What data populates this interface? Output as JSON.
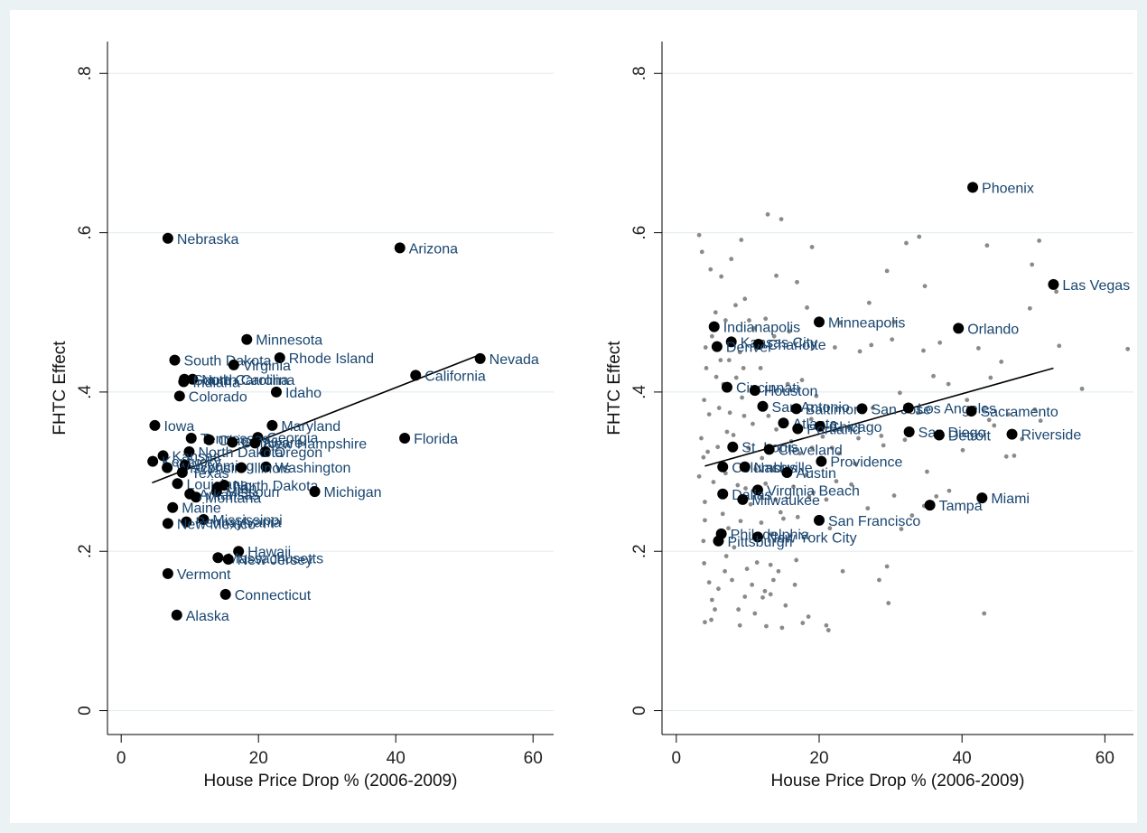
{
  "chart_data": [
    {
      "type": "scatter",
      "xlabel": "House Price Drop % (2006-2009)",
      "ylabel": "FHTC Effect",
      "xticks": [
        "0",
        "20",
        "40",
        "60"
      ],
      "yticks": [
        "0",
        ".2",
        ".4",
        ".6",
        ".8"
      ],
      "xlim": [
        -2,
        63
      ],
      "ylim": [
        -0.03,
        0.84
      ],
      "grid": "horizontal",
      "points": [
        {
          "label": "Nebraska",
          "x": 6.8,
          "y": 0.593
        },
        {
          "label": "Arizona",
          "x": 40.6,
          "y": 0.581
        },
        {
          "label": "Minnesota",
          "x": 18.3,
          "y": 0.466
        },
        {
          "label": "Rhode Island",
          "x": 23.1,
          "y": 0.443
        },
        {
          "label": "Nevada",
          "x": 52.3,
          "y": 0.442
        },
        {
          "label": "South Dakota",
          "x": 7.8,
          "y": 0.44
        },
        {
          "label": "Virginia",
          "x": 16.4,
          "y": 0.434
        },
        {
          "label": "California",
          "x": 42.9,
          "y": 0.421
        },
        {
          "label": "North Carolina",
          "x": 10.4,
          "y": 0.416
        },
        {
          "label": "South Carolina",
          "x": 9.2,
          "y": 0.416
        },
        {
          "label": "Indiana",
          "x": 9.1,
          "y": 0.413
        },
        {
          "label": "Idaho",
          "x": 22.6,
          "y": 0.4
        },
        {
          "label": "Colorado",
          "x": 8.5,
          "y": 0.395
        },
        {
          "label": "Iowa",
          "x": 4.9,
          "y": 0.358
        },
        {
          "label": "Maryland",
          "x": 22.0,
          "y": 0.358
        },
        {
          "label": "Georgia",
          "x": 19.9,
          "y": 0.343
        },
        {
          "label": "Florida",
          "x": 41.3,
          "y": 0.342
        },
        {
          "label": "Tennessee",
          "x": 10.2,
          "y": 0.342
        },
        {
          "label": "Ohio",
          "x": 12.8,
          "y": 0.34
        },
        {
          "label": "Delaware",
          "x": 16.2,
          "y": 0.337
        },
        {
          "label": "New Hampshire",
          "x": 19.5,
          "y": 0.336
        },
        {
          "label": "Oregon",
          "x": 21.0,
          "y": 0.325
        },
        {
          "label": "North Dakota",
          "x": 9.9,
          "y": 0.325
        },
        {
          "label": "Kansas",
          "x": 6.1,
          "y": 0.32
        },
        {
          "label": "Kentucky",
          "x": 4.6,
          "y": 0.313
        },
        {
          "label": "Wyoming",
          "x": 9.3,
          "y": 0.308
        },
        {
          "label": "Washington",
          "x": 21.1,
          "y": 0.306
        },
        {
          "label": "Wisconsin",
          "x": 6.7,
          "y": 0.305
        },
        {
          "label": "Illinois",
          "x": 17.5,
          "y": 0.305
        },
        {
          "label": "Texas",
          "x": 8.9,
          "y": 0.299
        },
        {
          "label": "Louisiana",
          "x": 8.2,
          "y": 0.285
        },
        {
          "label": "Utah",
          "x": 14.0,
          "y": 0.28
        },
        {
          "label": "North Dakota",
          "x": 15.0,
          "y": 0.283
        },
        {
          "label": "Missouri",
          "x": 13.9,
          "y": 0.275
        },
        {
          "label": "Michigan",
          "x": 28.2,
          "y": 0.275
        },
        {
          "label": "Montana",
          "x": 10.9,
          "y": 0.268
        },
        {
          "label": "Arkansas",
          "x": 10.0,
          "y": 0.272
        },
        {
          "label": "Maine",
          "x": 7.5,
          "y": 0.255
        },
        {
          "label": "Mississippi",
          "x": 12.0,
          "y": 0.24
        },
        {
          "label": "Pennsylvania",
          "x": 9.5,
          "y": 0.237
        },
        {
          "label": "New Mexico",
          "x": 6.8,
          "y": 0.235
        },
        {
          "label": "Hawaii",
          "x": 17.1,
          "y": 0.2
        },
        {
          "label": "Massachusetts",
          "x": 14.1,
          "y": 0.192
        },
        {
          "label": "New Jersey",
          "x": 15.6,
          "y": 0.19
        },
        {
          "label": "Vermont",
          "x": 6.8,
          "y": 0.172
        },
        {
          "label": "Connecticut",
          "x": 15.2,
          "y": 0.146
        },
        {
          "label": "Alaska",
          "x": 8.1,
          "y": 0.12
        }
      ],
      "fit_line": {
        "x": [
          4.5,
          52.3
        ],
        "y": [
          0.286,
          0.447
        ]
      }
    },
    {
      "type": "scatter",
      "xlabel": "House Price Drop % (2006-2009)",
      "ylabel": "FHTC Effect",
      "xticks": [
        "0",
        "20",
        "40",
        "60"
      ],
      "yticks": [
        "0",
        ".2",
        ".4",
        ".6",
        ".8"
      ],
      "xlim": [
        -2,
        64
      ],
      "ylim": [
        -0.03,
        0.84
      ],
      "grid": "horizontal",
      "points": [
        {
          "label": "Phoenix",
          "x": 41.5,
          "y": 0.657
        },
        {
          "label": "Las Vegas",
          "x": 52.8,
          "y": 0.535
        },
        {
          "label": "Minneapolis",
          "x": 20.0,
          "y": 0.488
        },
        {
          "label": "Indianapolis",
          "x": 5.3,
          "y": 0.482
        },
        {
          "label": "Orlando",
          "x": 39.5,
          "y": 0.48
        },
        {
          "label": "Kansas City",
          "x": 7.7,
          "y": 0.463
        },
        {
          "label": "Charlotte",
          "x": 11.5,
          "y": 0.46
        },
        {
          "label": "Denver",
          "x": 5.7,
          "y": 0.457
        },
        {
          "label": "Cincinnati",
          "x": 7.1,
          "y": 0.406
        },
        {
          "label": "Houston",
          "x": 11.0,
          "y": 0.402
        },
        {
          "label": "San Antonio",
          "x": 12.1,
          "y": 0.382
        },
        {
          "label": "Baltimore",
          "x": 16.8,
          "y": 0.379
        },
        {
          "label": "San Jose",
          "x": 26.0,
          "y": 0.379
        },
        {
          "label": "Los Angeles",
          "x": 32.5,
          "y": 0.38
        },
        {
          "label": "Sacramento",
          "x": 41.3,
          "y": 0.376
        },
        {
          "label": "Atlanta",
          "x": 15.0,
          "y": 0.361
        },
        {
          "label": "Chicago",
          "x": 20.1,
          "y": 0.357
        },
        {
          "label": "Portland",
          "x": 17.0,
          "y": 0.354
        },
        {
          "label": "San Diego",
          "x": 32.6,
          "y": 0.35
        },
        {
          "label": "Detroit",
          "x": 36.8,
          "y": 0.346
        },
        {
          "label": "Riverside",
          "x": 47.0,
          "y": 0.347
        },
        {
          "label": "St. Louis",
          "x": 7.9,
          "y": 0.331
        },
        {
          "label": "Cleveland",
          "x": 13.0,
          "y": 0.328
        },
        {
          "label": "Columbus",
          "x": 6.5,
          "y": 0.306
        },
        {
          "label": "Nashville",
          "x": 9.6,
          "y": 0.306
        },
        {
          "label": "Providence",
          "x": 20.3,
          "y": 0.313
        },
        {
          "label": "Austin",
          "x": 15.5,
          "y": 0.299
        },
        {
          "label": "Virginia Beach",
          "x": 11.4,
          "y": 0.277
        },
        {
          "label": "Dallas",
          "x": 6.5,
          "y": 0.272
        },
        {
          "label": "Milwaukee",
          "x": 9.3,
          "y": 0.265
        },
        {
          "label": "Miami",
          "x": 42.8,
          "y": 0.267
        },
        {
          "label": "Tampa",
          "x": 35.5,
          "y": 0.258
        },
        {
          "label": "San Francisco",
          "x": 20.0,
          "y": 0.239
        },
        {
          "label": "Philadelphia",
          "x": 6.3,
          "y": 0.222
        },
        {
          "label": "New York City",
          "x": 11.4,
          "y": 0.218
        },
        {
          "label": "Pittsburgh",
          "x": 5.9,
          "y": 0.213
        }
      ],
      "background_points": [
        [
          3.2,
          0.597
        ],
        [
          3.6,
          0.576
        ],
        [
          4.8,
          0.554
        ],
        [
          6.3,
          0.545
        ],
        [
          7.7,
          0.567
        ],
        [
          9.1,
          0.591
        ],
        [
          12.8,
          0.623
        ],
        [
          14.7,
          0.617
        ],
        [
          19.0,
          0.582
        ],
        [
          16.9,
          0.538
        ],
        [
          14.0,
          0.546
        ],
        [
          9.6,
          0.517
        ],
        [
          27.0,
          0.512
        ],
        [
          29.5,
          0.552
        ],
        [
          34.0,
          0.595
        ],
        [
          32.2,
          0.587
        ],
        [
          34.8,
          0.533
        ],
        [
          43.5,
          0.584
        ],
        [
          49.8,
          0.56
        ],
        [
          50.8,
          0.59
        ],
        [
          53.2,
          0.526
        ],
        [
          53.6,
          0.458
        ],
        [
          63.2,
          0.454
        ],
        [
          42.3,
          0.455
        ],
        [
          49.5,
          0.505
        ],
        [
          45.5,
          0.438
        ],
        [
          4.1,
          0.456
        ],
        [
          5.0,
          0.47
        ],
        [
          6.2,
          0.44
        ],
        [
          8.9,
          0.45
        ],
        [
          10.9,
          0.48
        ],
        [
          13.7,
          0.47
        ],
        [
          22.2,
          0.456
        ],
        [
          25.7,
          0.451
        ],
        [
          27.3,
          0.459
        ],
        [
          30.2,
          0.466
        ],
        [
          34.6,
          0.452
        ],
        [
          36.9,
          0.462
        ],
        [
          44.0,
          0.418
        ],
        [
          50.2,
          0.378
        ],
        [
          51.0,
          0.364
        ],
        [
          56.8,
          0.404
        ],
        [
          46.2,
          0.319
        ],
        [
          47.3,
          0.32
        ],
        [
          40.1,
          0.327
        ],
        [
          48.4,
          0.341
        ],
        [
          44.5,
          0.358
        ],
        [
          29.0,
          0.333
        ],
        [
          25.0,
          0.31
        ],
        [
          24.2,
          0.355
        ],
        [
          28.7,
          0.345
        ],
        [
          32.0,
          0.34
        ],
        [
          35.1,
          0.3
        ],
        [
          30.5,
          0.27
        ],
        [
          36.4,
          0.269
        ],
        [
          38.2,
          0.276
        ],
        [
          34.7,
          0.257
        ],
        [
          33.0,
          0.245
        ],
        [
          24.5,
          0.284
        ],
        [
          22.4,
          0.288
        ],
        [
          26.8,
          0.254
        ],
        [
          21.0,
          0.265
        ],
        [
          21.5,
          0.229
        ],
        [
          23.3,
          0.175
        ],
        [
          28.4,
          0.164
        ],
        [
          29.5,
          0.181
        ],
        [
          29.7,
          0.135
        ],
        [
          31.5,
          0.228
        ],
        [
          43.1,
          0.122
        ],
        [
          3.9,
          0.39
        ],
        [
          4.4,
          0.325
        ],
        [
          3.8,
          0.318
        ],
        [
          3.2,
          0.294
        ],
        [
          4.0,
          0.262
        ],
        [
          4.0,
          0.239
        ],
        [
          3.8,
          0.213
        ],
        [
          3.9,
          0.185
        ],
        [
          4.6,
          0.161
        ],
        [
          5.0,
          0.139
        ],
        [
          5.4,
          0.127
        ],
        [
          4.9,
          0.114
        ],
        [
          4.0,
          0.111
        ],
        [
          5.9,
          0.153
        ],
        [
          6.8,
          0.175
        ],
        [
          7.0,
          0.194
        ],
        [
          7.8,
          0.164
        ],
        [
          8.1,
          0.205
        ],
        [
          8.7,
          0.127
        ],
        [
          8.9,
          0.107
        ],
        [
          9.6,
          0.143
        ],
        [
          9.9,
          0.178
        ],
        [
          10.6,
          0.158
        ],
        [
          11.3,
          0.186
        ],
        [
          11.0,
          0.122
        ],
        [
          12.1,
          0.142
        ],
        [
          12.4,
          0.15
        ],
        [
          12.6,
          0.106
        ],
        [
          13.2,
          0.146
        ],
        [
          13.2,
          0.183
        ],
        [
          13.6,
          0.164
        ],
        [
          14.3,
          0.175
        ],
        [
          14.8,
          0.104
        ],
        [
          15.3,
          0.132
        ],
        [
          16.6,
          0.158
        ],
        [
          16.8,
          0.189
        ],
        [
          17.7,
          0.11
        ],
        [
          18.5,
          0.118
        ],
        [
          21.0,
          0.107
        ],
        [
          21.3,
          0.101
        ],
        [
          7.1,
          0.35
        ],
        [
          7.5,
          0.374
        ],
        [
          8.0,
          0.346
        ],
        [
          9.2,
          0.393
        ],
        [
          9.5,
          0.37
        ],
        [
          10.7,
          0.36
        ],
        [
          12.0,
          0.317
        ],
        [
          12.5,
          0.285
        ],
        [
          13.5,
          0.302
        ],
        [
          14.6,
          0.249
        ],
        [
          16.0,
          0.22
        ],
        [
          17.3,
          0.323
        ],
        [
          18.2,
          0.296
        ],
        [
          19.0,
          0.33
        ],
        [
          20.5,
          0.344
        ],
        [
          22.8,
          0.323
        ],
        [
          25.5,
          0.342
        ],
        [
          27.5,
          0.38
        ],
        [
          31.3,
          0.399
        ],
        [
          33.8,
          0.374
        ],
        [
          36.0,
          0.42
        ],
        [
          38.1,
          0.41
        ],
        [
          40.7,
          0.39
        ],
        [
          43.8,
          0.365
        ],
        [
          46.5,
          0.372
        ],
        [
          6.0,
          0.38
        ],
        [
          6.6,
          0.41
        ],
        [
          8.4,
          0.418
        ],
        [
          11.8,
          0.43
        ],
        [
          15.6,
          0.41
        ],
        [
          17.6,
          0.415
        ],
        [
          19.6,
          0.395
        ],
        [
          5.5,
          0.5
        ],
        [
          6.9,
          0.49
        ],
        [
          8.3,
          0.509
        ],
        [
          10.2,
          0.49
        ],
        [
          12.5,
          0.492
        ],
        [
          15.8,
          0.476
        ],
        [
          18.3,
          0.506
        ],
        [
          22.9,
          0.487
        ],
        [
          30.5,
          0.488
        ],
        [
          6.5,
          0.247
        ],
        [
          7.3,
          0.229
        ],
        [
          9.0,
          0.238
        ],
        [
          10.4,
          0.259
        ],
        [
          11.9,
          0.236
        ],
        [
          13.4,
          0.222
        ],
        [
          15.0,
          0.241
        ],
        [
          17.0,
          0.243
        ],
        [
          18.6,
          0.268
        ],
        [
          5.2,
          0.287
        ],
        [
          6.9,
          0.298
        ],
        [
          8.6,
          0.283
        ],
        [
          9.7,
          0.279
        ],
        [
          11.1,
          0.303
        ],
        [
          13.9,
          0.265
        ],
        [
          16.4,
          0.281
        ],
        [
          19.2,
          0.274
        ],
        [
          3.5,
          0.342
        ],
        [
          4.6,
          0.372
        ],
        [
          5.8,
          0.331
        ],
        [
          4.2,
          0.43
        ],
        [
          5.6,
          0.419
        ],
        [
          7.4,
          0.44
        ],
        [
          9.4,
          0.43
        ],
        [
          10.1,
          0.33
        ],
        [
          12.9,
          0.37
        ],
        [
          14.0,
          0.353
        ],
        [
          16.1,
          0.338
        ],
        [
          18.9,
          0.366
        ],
        [
          21.8,
          0.33
        ]
      ],
      "fit_line": {
        "x": [
          4.0,
          52.8
        ],
        "y": [
          0.307,
          0.43
        ]
      }
    }
  ]
}
